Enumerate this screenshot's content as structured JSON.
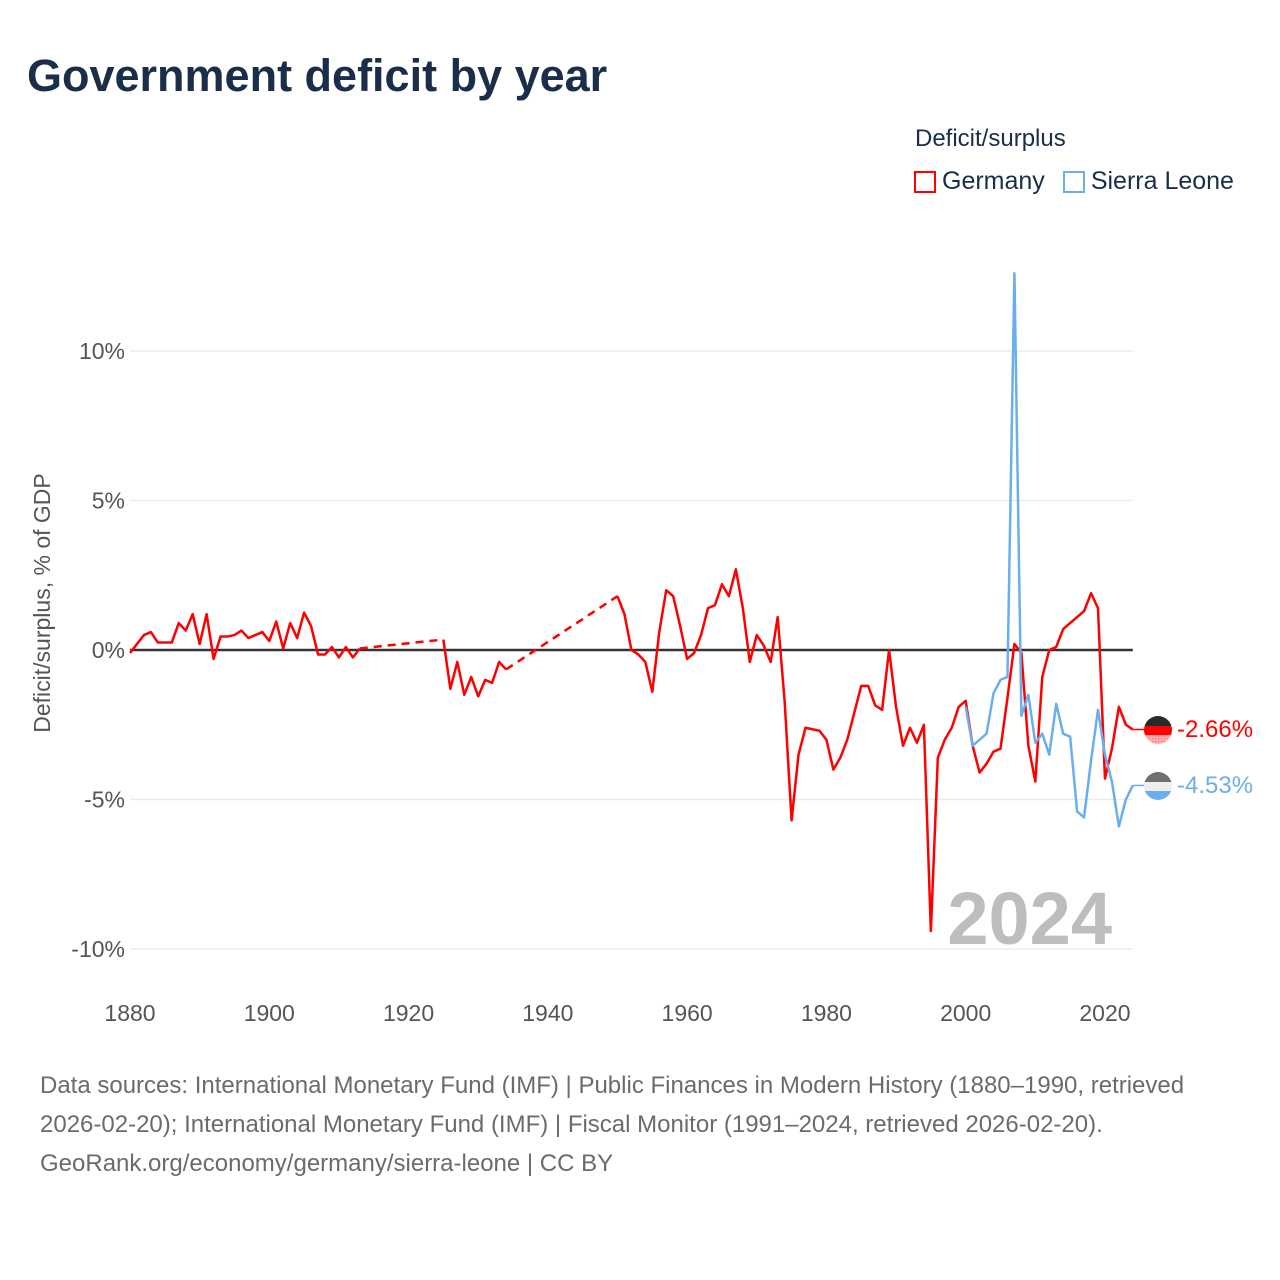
{
  "title": "Government deficit by year",
  "legend": {
    "title": "Deficit/surplus",
    "items": [
      {
        "name": "Germany",
        "color": "#ff0000"
      },
      {
        "name": "Sierra Leone",
        "color": "#6aaeee"
      }
    ]
  },
  "year_label": "2024",
  "end_labels": {
    "germany": "-2.66%",
    "sierra_leone": "-4.53%"
  },
  "footer": {
    "sources": "Data sources: International Monetary Fund (IMF) | Public Finances in Modern History (1880–1990, retrieved 2026-02-20); International Monetary Fund (IMF) | Fiscal Monitor (1991–2024, retrieved 2026-02-20).",
    "credit": "GeoRank.org/economy/germany/sierra-leone | CC BY"
  },
  "chart_data": {
    "type": "line",
    "title": "Government deficit by year",
    "xlabel": "",
    "ylabel": "Deficit/surplus, % of GDP",
    "xlim": [
      1880,
      2024
    ],
    "ylim": [
      -11,
      13
    ],
    "xticks": [
      1880,
      1900,
      1920,
      1940,
      1960,
      1980,
      2000,
      2020
    ],
    "xtick_labels": [
      "1880",
      "1900",
      "1920",
      "1940",
      "1960",
      "1980",
      "2000",
      "2020"
    ],
    "yticks": [
      -10,
      -5,
      0,
      5,
      10
    ],
    "ytick_labels": [
      "-10%",
      "-5%",
      "0%",
      "5%",
      "10%"
    ],
    "grid": true,
    "legend_placement": "top-right",
    "series": [
      {
        "name": "Germany",
        "color": "#ff0000",
        "points": [
          [
            1880,
            -0.1
          ],
          [
            1881,
            0.2
          ],
          [
            1882,
            0.5
          ],
          [
            1883,
            0.6
          ],
          [
            1884,
            0.25
          ],
          [
            1885,
            0.25
          ],
          [
            1886,
            0.25
          ],
          [
            1887,
            0.9
          ],
          [
            1888,
            0.65
          ],
          [
            1889,
            1.2
          ],
          [
            1890,
            0.2
          ],
          [
            1891,
            1.2
          ],
          [
            1892,
            -0.3
          ],
          [
            1893,
            0.45
          ],
          [
            1894,
            0.45
          ],
          [
            1895,
            0.5
          ],
          [
            1896,
            0.65
          ],
          [
            1897,
            0.4
          ],
          [
            1898,
            0.5
          ],
          [
            1899,
            0.6
          ],
          [
            1900,
            0.3
          ],
          [
            1901,
            0.95
          ],
          [
            1902,
            0.05
          ],
          [
            1903,
            0.9
          ],
          [
            1904,
            0.4
          ],
          [
            1905,
            1.25
          ],
          [
            1906,
            0.8
          ],
          [
            1907,
            -0.15
          ],
          [
            1908,
            -0.15
          ],
          [
            1909,
            0.1
          ],
          [
            1910,
            -0.25
          ],
          [
            1911,
            0.1
          ],
          [
            1912,
            -0.25
          ],
          [
            1913,
            0.05
          ],
          [
            1925,
            0.35
          ],
          [
            1926,
            -1.3
          ],
          [
            1927,
            -0.4
          ],
          [
            1928,
            -1.5
          ],
          [
            1929,
            -0.9
          ],
          [
            1930,
            -1.55
          ],
          [
            1931,
            -1.0
          ],
          [
            1932,
            -1.1
          ],
          [
            1933,
            -0.4
          ],
          [
            1934,
            -0.65
          ],
          [
            1950,
            1.8
          ],
          [
            1951,
            1.2
          ],
          [
            1952,
            0.0
          ],
          [
            1953,
            -0.15
          ],
          [
            1954,
            -0.4
          ],
          [
            1955,
            -1.4
          ],
          [
            1956,
            0.6
          ],
          [
            1957,
            2.0
          ],
          [
            1958,
            1.8
          ],
          [
            1959,
            0.8
          ],
          [
            1960,
            -0.3
          ],
          [
            1961,
            -0.1
          ],
          [
            1962,
            0.5
          ],
          [
            1963,
            1.4
          ],
          [
            1964,
            1.5
          ],
          [
            1965,
            2.2
          ],
          [
            1966,
            1.8
          ],
          [
            1967,
            2.7
          ],
          [
            1968,
            1.4
          ],
          [
            1969,
            -0.4
          ],
          [
            1970,
            0.5
          ],
          [
            1971,
            0.15
          ],
          [
            1972,
            -0.4
          ],
          [
            1973,
            1.1
          ],
          [
            1974,
            -1.7
          ],
          [
            1975,
            -5.7
          ],
          [
            1976,
            -3.5
          ],
          [
            1977,
            -2.6
          ],
          [
            1978,
            -2.65
          ],
          [
            1979,
            -2.7
          ],
          [
            1980,
            -3.0
          ],
          [
            1981,
            -4.0
          ],
          [
            1982,
            -3.6
          ],
          [
            1983,
            -3.0
          ],
          [
            1984,
            -2.1
          ],
          [
            1985,
            -1.2
          ],
          [
            1986,
            -1.2
          ],
          [
            1987,
            -1.85
          ],
          [
            1988,
            -2.0
          ],
          [
            1989,
            0.0
          ],
          [
            1990,
            -1.9
          ],
          [
            1991,
            -3.2
          ],
          [
            1992,
            -2.6
          ],
          [
            1993,
            -3.1
          ],
          [
            1994,
            -2.5
          ],
          [
            1995,
            -9.4
          ],
          [
            1996,
            -3.6
          ],
          [
            1997,
            -3.0
          ],
          [
            1998,
            -2.6
          ],
          [
            1999,
            -1.9
          ],
          [
            2000,
            -1.7
          ],
          [
            2001,
            -3.2
          ],
          [
            2002,
            -4.1
          ],
          [
            2003,
            -3.8
          ],
          [
            2004,
            -3.4
          ],
          [
            2005,
            -3.3
          ],
          [
            2006,
            -1.6
          ],
          [
            2007,
            0.2
          ],
          [
            2008,
            -0.1
          ],
          [
            2009,
            -3.2
          ],
          [
            2010,
            -4.4
          ],
          [
            2011,
            -0.9
          ],
          [
            2012,
            0.0
          ],
          [
            2013,
            0.1
          ],
          [
            2014,
            0.7
          ],
          [
            2015,
            0.9
          ],
          [
            2016,
            1.1
          ],
          [
            2017,
            1.3
          ],
          [
            2018,
            1.9
          ],
          [
            2019,
            1.4
          ],
          [
            2020,
            -4.3
          ],
          [
            2021,
            -3.3
          ],
          [
            2022,
            -1.9
          ],
          [
            2023,
            -2.5
          ],
          [
            2024,
            -2.66
          ]
        ]
      },
      {
        "name": "Sierra Leone",
        "color": "#6aaeee",
        "points": [
          [
            2000,
            -1.9
          ],
          [
            2001,
            -3.2
          ],
          [
            2002,
            -3.0
          ],
          [
            2003,
            -2.8
          ],
          [
            2004,
            -1.45
          ],
          [
            2005,
            -1.0
          ],
          [
            2006,
            -0.9
          ],
          [
            2007,
            12.6
          ],
          [
            2008,
            -2.2
          ],
          [
            2009,
            -1.5
          ],
          [
            2010,
            -3.1
          ],
          [
            2011,
            -2.8
          ],
          [
            2012,
            -3.5
          ],
          [
            2013,
            -1.8
          ],
          [
            2014,
            -2.8
          ],
          [
            2015,
            -2.9
          ],
          [
            2016,
            -5.4
          ],
          [
            2017,
            -5.6
          ],
          [
            2018,
            -3.7
          ],
          [
            2019,
            -2.0
          ],
          [
            2020,
            -3.5
          ],
          [
            2021,
            -4.4
          ],
          [
            2022,
            -5.9
          ],
          [
            2023,
            -5.0
          ],
          [
            2024,
            -4.53
          ]
        ]
      }
    ]
  }
}
